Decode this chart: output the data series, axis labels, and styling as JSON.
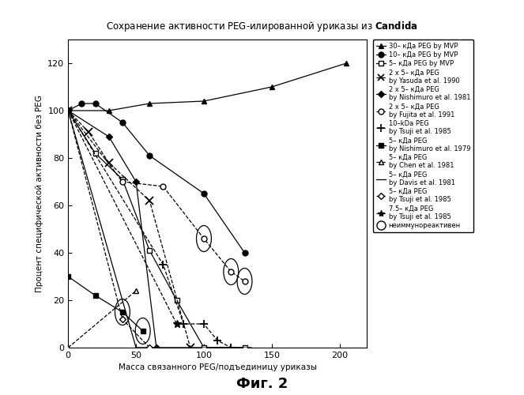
{
  "title_normal": "Сохранение активности PEG-илированной уриказы из ",
  "title_bold": "Candida",
  "xlabel": "Масса связанного PEG/подъединицу уриказы",
  "ylabel": "Процент специфической активности без PEG",
  "caption": "Фиг. 2",
  "xlim": [
    0,
    220
  ],
  "ylim": [
    0,
    130
  ],
  "yticks": [
    0,
    20,
    40,
    60,
    80,
    100,
    120
  ],
  "xticks": [
    0,
    50,
    100,
    150,
    200
  ],
  "series_30kDa_MVP": {
    "x": [
      0,
      30,
      60,
      100,
      150,
      205
    ],
    "y": [
      100,
      100,
      103,
      104,
      110,
      120
    ],
    "marker": "^",
    "filled": true,
    "linestyle": "-"
  },
  "series_10kDa_MVP": {
    "x": [
      0,
      10,
      20,
      40,
      60,
      100,
      130
    ],
    "y": [
      100,
      103,
      103,
      95,
      81,
      65,
      40
    ],
    "marker": "o",
    "filled": true,
    "linestyle": "-"
  },
  "series_5kDa_MVP": {
    "x": [
      0,
      20,
      40,
      60,
      80,
      100,
      130
    ],
    "y": [
      100,
      82,
      71,
      41,
      20,
      0,
      0
    ],
    "marker": "s",
    "filled": false,
    "linestyle": "-"
  },
  "series_yasuda": {
    "x": [
      0,
      15,
      30,
      60,
      90
    ],
    "y": [
      100,
      91,
      78,
      62,
      0
    ],
    "marker": "x",
    "filled": false,
    "linestyle": "--"
  },
  "series_nishimuro1981": {
    "x": [
      0,
      30,
      50,
      65
    ],
    "y": [
      100,
      89,
      70,
      0
    ],
    "marker": "D",
    "filled": true,
    "linestyle": "-"
  },
  "series_fujita": {
    "x": [
      0,
      40,
      70,
      100,
      120,
      130
    ],
    "y": [
      100,
      70,
      68,
      46,
      32,
      28
    ],
    "marker": "o",
    "filled": false,
    "linestyle": "--",
    "circle_points": [
      [
        100,
        46
      ],
      [
        120,
        32
      ],
      [
        130,
        28
      ]
    ]
  },
  "series_tsuji10kDa": {
    "x": [
      0,
      70,
      85,
      100,
      110,
      120
    ],
    "y": [
      100,
      35,
      10,
      10,
      3,
      0
    ],
    "marker": "+",
    "filled": false,
    "linestyle": "--"
  },
  "series_nishimuro1979": {
    "x": [
      0,
      20,
      40,
      55
    ],
    "y": [
      30,
      22,
      15,
      7
    ],
    "marker": "s",
    "filled": true,
    "linestyle": "-",
    "circle_points": [
      [
        40,
        15
      ],
      [
        55,
        7
      ]
    ]
  },
  "series_chen": {
    "x": [
      0,
      50
    ],
    "y": [
      0,
      24
    ],
    "marker": "^",
    "filled": false,
    "linestyle": "--"
  },
  "series_davis": {
    "x": [
      0,
      50,
      80,
      120,
      135
    ],
    "y": [
      100,
      0,
      0,
      0,
      0
    ],
    "marker": "",
    "filled": false,
    "linestyle": "-"
  },
  "series_tsuji5kDa": {
    "x": [
      0,
      40,
      60
    ],
    "y": [
      100,
      12,
      0
    ],
    "marker": "D",
    "filled": false,
    "linestyle": "--"
  },
  "series_tsuji75kDa": {
    "x": [
      0,
      80
    ],
    "y": [
      100,
      10
    ],
    "marker": "*",
    "filled": false,
    "linestyle": "--"
  }
}
